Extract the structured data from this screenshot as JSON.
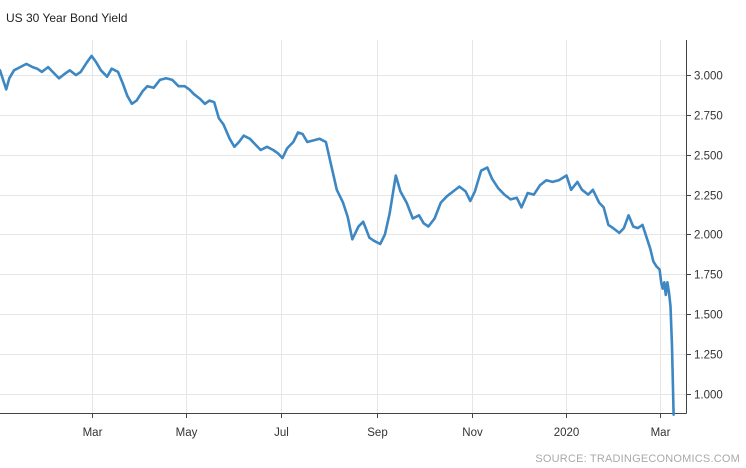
{
  "title": "US 30 Year Bond Yield",
  "source": "SOURCE: TRADINGECONOMICS.COM",
  "colors": {
    "line": "#3d87c3",
    "grid": "#e6e6e6",
    "axis": "#444444"
  },
  "chart_data": {
    "type": "line",
    "title": "US 30 Year Bond Yield",
    "xlabel": "",
    "ylabel": "",
    "x_range": [
      "2019-01-01",
      "2020-03-18"
    ],
    "ylim": [
      0.88,
      3.22
    ],
    "y_ticks": [
      3.0,
      2.75,
      2.5,
      2.25,
      2.0,
      1.75,
      1.5,
      1.25,
      1.0
    ],
    "y_tick_labels": [
      "3.000",
      "2.750",
      "2.500",
      "2.250",
      "2.000",
      "1.750",
      "1.500",
      "1.250",
      "1.000"
    ],
    "x_ticks": [
      {
        "date": "2019-03-01",
        "label": "Mar"
      },
      {
        "date": "2019-05-01",
        "label": "May"
      },
      {
        "date": "2019-07-01",
        "label": "Jul"
      },
      {
        "date": "2019-09-01",
        "label": "Sep"
      },
      {
        "date": "2019-11-01",
        "label": "Nov"
      },
      {
        "date": "2020-01-01",
        "label": "2020"
      },
      {
        "date": "2020-03-01",
        "label": "Mar"
      }
    ],
    "grid": true,
    "y_axis_side": "right",
    "series": [
      {
        "name": "",
        "points": [
          [
            "2019-01-01",
            3.03
          ],
          [
            "2019-01-03",
            2.97
          ],
          [
            "2019-01-05",
            2.91
          ],
          [
            "2019-01-07",
            2.98
          ],
          [
            "2019-01-10",
            3.03
          ],
          [
            "2019-01-14",
            3.05
          ],
          [
            "2019-01-18",
            3.07
          ],
          [
            "2019-01-22",
            3.05
          ],
          [
            "2019-01-25",
            3.04
          ],
          [
            "2019-01-28",
            3.02
          ],
          [
            "2019-02-01",
            3.05
          ],
          [
            "2019-02-05",
            3.01
          ],
          [
            "2019-02-08",
            2.98
          ],
          [
            "2019-02-12",
            3.01
          ],
          [
            "2019-02-15",
            3.03
          ],
          [
            "2019-02-19",
            3.0
          ],
          [
            "2019-02-22",
            3.02
          ],
          [
            "2019-02-26",
            3.08
          ],
          [
            "2019-03-01",
            3.12
          ],
          [
            "2019-03-04",
            3.08
          ],
          [
            "2019-03-07",
            3.03
          ],
          [
            "2019-03-11",
            2.99
          ],
          [
            "2019-03-14",
            3.04
          ],
          [
            "2019-03-18",
            3.02
          ],
          [
            "2019-03-21",
            2.95
          ],
          [
            "2019-03-24",
            2.87
          ],
          [
            "2019-03-27",
            2.82
          ],
          [
            "2019-03-30",
            2.84
          ],
          [
            "2019-04-03",
            2.9
          ],
          [
            "2019-04-06",
            2.93
          ],
          [
            "2019-04-10",
            2.92
          ],
          [
            "2019-04-14",
            2.97
          ],
          [
            "2019-04-18",
            2.98
          ],
          [
            "2019-04-22",
            2.97
          ],
          [
            "2019-04-26",
            2.93
          ],
          [
            "2019-04-30",
            2.93
          ],
          [
            "2019-05-03",
            2.91
          ],
          [
            "2019-05-06",
            2.88
          ],
          [
            "2019-05-10",
            2.85
          ],
          [
            "2019-05-13",
            2.82
          ],
          [
            "2019-05-16",
            2.84
          ],
          [
            "2019-05-19",
            2.83
          ],
          [
            "2019-05-22",
            2.73
          ],
          [
            "2019-05-25",
            2.69
          ],
          [
            "2019-05-29",
            2.6
          ],
          [
            "2019-06-01",
            2.55
          ],
          [
            "2019-06-04",
            2.58
          ],
          [
            "2019-06-07",
            2.62
          ],
          [
            "2019-06-11",
            2.6
          ],
          [
            "2019-06-14",
            2.57
          ],
          [
            "2019-06-18",
            2.53
          ],
          [
            "2019-06-22",
            2.55
          ],
          [
            "2019-06-26",
            2.53
          ],
          [
            "2019-06-29",
            2.51
          ],
          [
            "2019-07-02",
            2.48
          ],
          [
            "2019-07-05",
            2.54
          ],
          [
            "2019-07-09",
            2.58
          ],
          [
            "2019-07-12",
            2.64
          ],
          [
            "2019-07-15",
            2.63
          ],
          [
            "2019-07-18",
            2.58
          ],
          [
            "2019-07-22",
            2.59
          ],
          [
            "2019-07-26",
            2.6
          ],
          [
            "2019-07-30",
            2.58
          ],
          [
            "2019-08-02",
            2.45
          ],
          [
            "2019-08-06",
            2.28
          ],
          [
            "2019-08-10",
            2.2
          ],
          [
            "2019-08-13",
            2.11
          ],
          [
            "2019-08-16",
            1.97
          ],
          [
            "2019-08-20",
            2.05
          ],
          [
            "2019-08-23",
            2.08
          ],
          [
            "2019-08-27",
            1.98
          ],
          [
            "2019-08-30",
            1.96
          ],
          [
            "2019-09-03",
            1.94
          ],
          [
            "2019-09-06",
            2.0
          ],
          [
            "2019-09-09",
            2.13
          ],
          [
            "2019-09-13",
            2.37
          ],
          [
            "2019-09-16",
            2.27
          ],
          [
            "2019-09-20",
            2.2
          ],
          [
            "2019-09-24",
            2.1
          ],
          [
            "2019-09-28",
            2.12
          ],
          [
            "2019-10-01",
            2.07
          ],
          [
            "2019-10-04",
            2.05
          ],
          [
            "2019-10-08",
            2.1
          ],
          [
            "2019-10-12",
            2.2
          ],
          [
            "2019-10-16",
            2.24
          ],
          [
            "2019-10-20",
            2.27
          ],
          [
            "2019-10-24",
            2.3
          ],
          [
            "2019-10-28",
            2.27
          ],
          [
            "2019-10-31",
            2.21
          ],
          [
            "2019-11-03",
            2.27
          ],
          [
            "2019-11-07",
            2.4
          ],
          [
            "2019-11-11",
            2.42
          ],
          [
            "2019-11-14",
            2.35
          ],
          [
            "2019-11-18",
            2.29
          ],
          [
            "2019-11-22",
            2.25
          ],
          [
            "2019-11-26",
            2.22
          ],
          [
            "2019-11-30",
            2.23
          ],
          [
            "2019-12-03",
            2.17
          ],
          [
            "2019-12-07",
            2.26
          ],
          [
            "2019-12-11",
            2.25
          ],
          [
            "2019-12-15",
            2.31
          ],
          [
            "2019-12-19",
            2.34
          ],
          [
            "2019-12-23",
            2.33
          ],
          [
            "2019-12-27",
            2.34
          ],
          [
            "2020-01-01",
            2.37
          ],
          [
            "2020-01-04",
            2.28
          ],
          [
            "2020-01-08",
            2.33
          ],
          [
            "2020-01-11",
            2.28
          ],
          [
            "2020-01-15",
            2.25
          ],
          [
            "2020-01-18",
            2.28
          ],
          [
            "2020-01-22",
            2.2
          ],
          [
            "2020-01-25",
            2.17
          ],
          [
            "2020-01-28",
            2.06
          ],
          [
            "2020-01-31",
            2.04
          ],
          [
            "2020-02-04",
            2.01
          ],
          [
            "2020-02-07",
            2.04
          ],
          [
            "2020-02-10",
            2.12
          ],
          [
            "2020-02-13",
            2.05
          ],
          [
            "2020-02-16",
            2.04
          ],
          [
            "2020-02-19",
            2.06
          ],
          [
            "2020-02-22",
            1.97
          ],
          [
            "2020-02-24",
            1.91
          ],
          [
            "2020-02-26",
            1.83
          ],
          [
            "2020-02-28",
            1.8
          ],
          [
            "2020-03-01",
            1.78
          ],
          [
            "2020-03-02",
            1.7
          ],
          [
            "2020-03-03",
            1.66
          ],
          [
            "2020-03-04",
            1.7
          ],
          [
            "2020-03-05",
            1.62
          ],
          [
            "2020-03-06",
            1.7
          ],
          [
            "2020-03-07",
            1.64
          ],
          [
            "2020-03-08",
            1.55
          ],
          [
            "2020-03-09",
            1.3
          ],
          [
            "2020-03-10",
            0.87
          ]
        ]
      }
    ]
  }
}
